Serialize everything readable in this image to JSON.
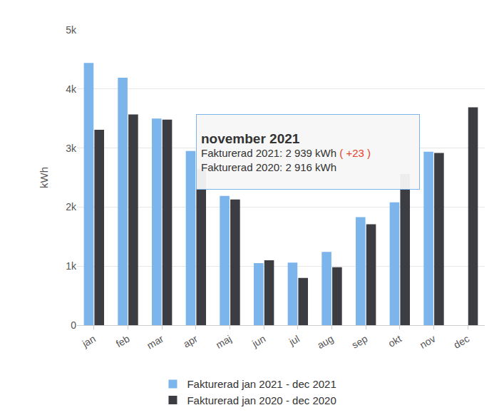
{
  "chart_data": {
    "type": "bar",
    "y_label": "kWh",
    "categories": [
      "jan",
      "feb",
      "mar",
      "apr",
      "maj",
      "jun",
      "jul",
      "aug",
      "sep",
      "okt",
      "nov",
      "dec"
    ],
    "series": [
      {
        "name": "Fakturerad jan 2021 - dec 2021",
        "color": "#7cb5ec",
        "values": [
          4440,
          4190,
          3500,
          2950,
          2190,
          1050,
          1060,
          1240,
          1830,
          2080,
          2939,
          null
        ]
      },
      {
        "name": "Fakturerad jan 2020 - dec 2020",
        "color": "#3c3d42",
        "values": [
          3310,
          3570,
          3480,
          2640,
          2130,
          1100,
          800,
          980,
          1710,
          2560,
          2916,
          3690
        ]
      }
    ],
    "ylim": [
      0,
      5000
    ],
    "yticks": [
      0,
      {
        "value": 1000,
        "label": "1k"
      },
      {
        "value": 2000,
        "label": "2k"
      },
      {
        "value": 3000,
        "label": "3k"
      },
      {
        "value": 4000,
        "label": "4k"
      },
      {
        "value": 5000,
        "label": "5k"
      }
    ],
    "grid": true,
    "legend": "bottom",
    "tooltip": {
      "title": "november 2021",
      "lines": [
        {
          "text": "Fakturerad 2021: 2 939 kWh",
          "change": "( +23 )"
        },
        {
          "text": "Fakturerad 2020: 2 916 kWh"
        }
      ]
    }
  }
}
